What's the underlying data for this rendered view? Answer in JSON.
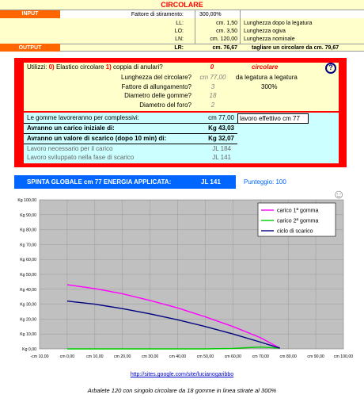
{
  "colors": {
    "title_bg": "#ffffcc",
    "title_text": "#ff0000",
    "section_label_bg": "#ff6600",
    "red_frame": "#ff0000",
    "input_box_bg": "#ffffcc",
    "result_bg": "#ccffff",
    "blue_bar": "#0066ff",
    "plot_bg": "#c0c0c0",
    "series_1": "#ff00ff",
    "series_2": "#00cc00",
    "series_3": "#000080"
  },
  "header": {
    "title": "CIRCOLARE",
    "input_label": "INPUT",
    "output_label": "OUTPUT",
    "rows": [
      {
        "label": "Fattore di stiramento:",
        "value": "300,00%",
        "desc": ""
      },
      {
        "label": "LL:",
        "value": "cm. 1,50",
        "desc": "Lunghezza dopo la legatura"
      },
      {
        "label": "LO:",
        "value": "cm. 3,50",
        "desc": "Lunghezza ogiva"
      },
      {
        "label": "LN:",
        "value": "cm. 120,00",
        "desc": "Lunghezza nominale"
      }
    ],
    "lr_label": "LR:",
    "lr_value": "cm. 76,67",
    "lr_note": "tagliare un circolare da cm. 79,67"
  },
  "config": {
    "utilizzi_prefix": "Utilizzi:",
    "num1": "0)",
    "elastico_text": "Elastico circolare",
    "num2": "1)",
    "coppia_text": "coppia di anulari?",
    "utilizzi_value": "0",
    "utilizzi_type": "circolare",
    "help_icon_glyph": "?",
    "lunghezza_label": "Lunghezza del circolare?",
    "lunghezza_value": "cm 77,00",
    "lunghezza_note": "da legatura a legatura",
    "fattore_label": "Fattore di allungamento?",
    "fattore_value": "3",
    "fattore_note": "300%",
    "diam_gomme_label": "Diametro delle gomme?",
    "diam_gomme_value": "18",
    "diam_foro_label": "Diametro del foro?",
    "diam_foro_value": "2"
  },
  "results": {
    "complessivi_label": "Le gomme lavoreranno per complessivi:",
    "complessivi_value": "cm 77,00",
    "lavoro_effettivo": "lavoro effettivo cm 77",
    "carico_iniziale_label": "Avranno un carico iniziale di:",
    "carico_iniziale_value": "Kg 43,03",
    "scarico_label": "Avranno un valore di scarico (dopo 10 min) di:",
    "scarico_value": "Kg 32,07",
    "lavoro_carico_label": "Lavoro necessario per il carico",
    "lavoro_carico_value": "JL 184",
    "lavoro_scarico_label": "Lavoro sviluppato nella fase di scarico",
    "lavoro_scarico_value": "JL 141"
  },
  "summary": {
    "spinta_text": "SPINTA GLOBALE  cm  77  ENERGIA APPLICATA:",
    "energia_value": "JL  141",
    "punteggio_text": "Punteggio:  100",
    "smiley_glyph": "☺"
  },
  "chart_data": {
    "type": "line",
    "x": [
      0,
      10,
      20,
      30,
      40,
      50,
      60,
      70,
      77
    ],
    "xlim": [
      -10,
      100
    ],
    "ylim": [
      0,
      100
    ],
    "x_ticks": [
      "-cm 10,00",
      "cm 0,00",
      "cm 10,00",
      "cm 20,00",
      "cm 30,00",
      "cm 40,00",
      "cm 50,00",
      "cm 60,00",
      "cm 70,00",
      "cm 80,00",
      "cm 90,00",
      "cm 100,00"
    ],
    "y_ticks": [
      "Kg 0,00",
      "Kg 10,00",
      "Kg 20,00",
      "Kg 30,00",
      "Kg 40,00",
      "Kg 50,00",
      "Kg 60,00",
      "Kg 70,00",
      "Kg 80,00",
      "Kg 90,00",
      "Kg 100,00"
    ],
    "grid": true,
    "legend_position": "top-right",
    "series": [
      {
        "name": "carico 1ª gomma",
        "x": [
          0,
          10,
          20,
          30,
          40,
          50,
          60,
          70,
          77
        ],
        "values": [
          43.03,
          40.5,
          37.0,
          32.5,
          27.5,
          21.5,
          15.0,
          7.5,
          0.5
        ]
      },
      {
        "name": "carico 2ª gomma",
        "x": [
          0,
          10,
          20,
          30,
          40,
          50,
          60,
          65,
          70,
          77
        ],
        "values": [
          0,
          0,
          0,
          0,
          0,
          0,
          0.3,
          0.8,
          1.2,
          0.5
        ]
      },
      {
        "name": "ciclo di scarico",
        "x": [
          0,
          10,
          20,
          30,
          40,
          50,
          60,
          70,
          77
        ],
        "values": [
          32.07,
          30.0,
          27.0,
          23.5,
          19.5,
          15.0,
          10.0,
          4.5,
          0.5
        ]
      }
    ]
  },
  "footer": {
    "link": "http://sites.google.com/site/lucianogaribbo",
    "caption": "Arbalete  120  con  singolo  circolare  da  18  gomme  in  linea  stirate  al  300%"
  }
}
